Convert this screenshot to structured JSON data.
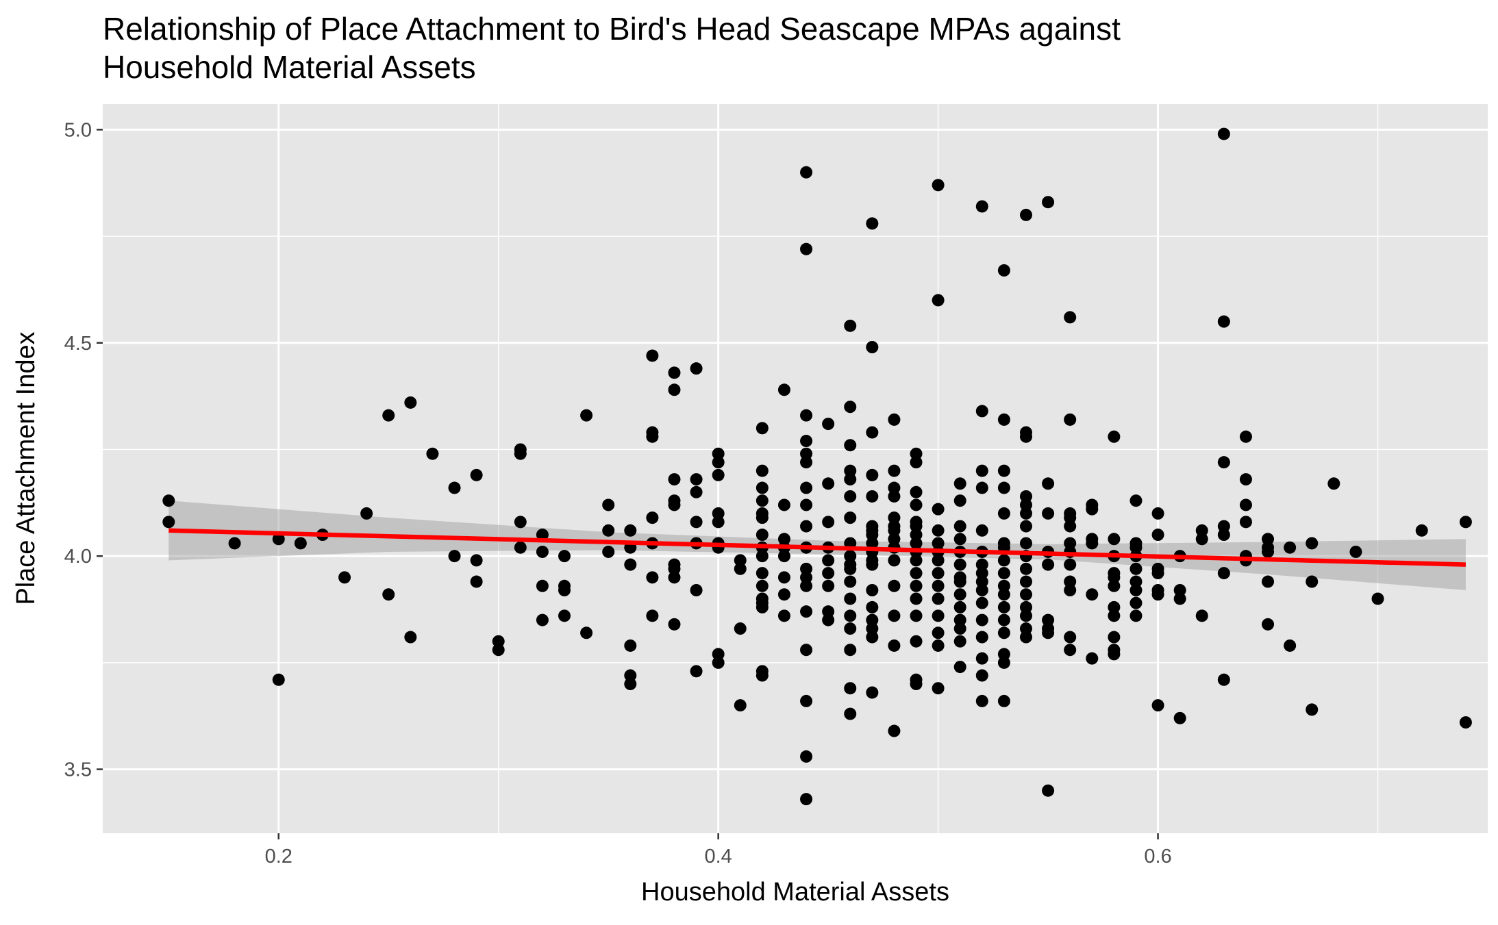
{
  "chart_data": {
    "type": "scatter",
    "title": "Relationship of Place Attachment to Bird's Head Seascape MPAs against\n        Household Material Assets",
    "xlabel": "Household Material Assets",
    "ylabel": "Place Attachment Index",
    "xlim": [
      0.12,
      0.75
    ],
    "ylim": [
      3.35,
      5.06
    ],
    "xticks": [
      {
        "value": 0.2,
        "label": "0.2"
      },
      {
        "value": 0.4,
        "label": "0.4"
      },
      {
        "value": 0.6,
        "label": "0.6"
      }
    ],
    "yticks": [
      {
        "value": 3.5,
        "label": "3.5"
      },
      {
        "value": 4.0,
        "label": "4.0"
      },
      {
        "value": 4.5,
        "label": "4.5"
      },
      {
        "value": 5.0,
        "label": "5.0"
      }
    ],
    "grid": true,
    "legend": "none",
    "colors": {
      "panel": "#e6e6e6",
      "grid": "#ffffff",
      "points": "#000000",
      "fit_line": "#ff0000",
      "ribbon": "#999999"
    },
    "points": [
      [
        0.15,
        4.13
      ],
      [
        0.15,
        4.08
      ],
      [
        0.18,
        4.03
      ],
      [
        0.2,
        4.04
      ],
      [
        0.2,
        3.71
      ],
      [
        0.21,
        4.03
      ],
      [
        0.22,
        4.05
      ],
      [
        0.23,
        3.95
      ],
      [
        0.24,
        4.1
      ],
      [
        0.25,
        4.33
      ],
      [
        0.25,
        3.91
      ],
      [
        0.26,
        4.36
      ],
      [
        0.26,
        3.81
      ],
      [
        0.27,
        4.24
      ],
      [
        0.28,
        4.16
      ],
      [
        0.28,
        4.0
      ],
      [
        0.29,
        4.19
      ],
      [
        0.29,
        3.99
      ],
      [
        0.29,
        3.94
      ],
      [
        0.3,
        3.8
      ],
      [
        0.3,
        3.78
      ],
      [
        0.31,
        4.25
      ],
      [
        0.31,
        4.24
      ],
      [
        0.31,
        4.08
      ],
      [
        0.31,
        4.02
      ],
      [
        0.32,
        4.05
      ],
      [
        0.32,
        4.01
      ],
      [
        0.32,
        3.93
      ],
      [
        0.32,
        3.85
      ],
      [
        0.33,
        4.0
      ],
      [
        0.33,
        3.93
      ],
      [
        0.33,
        3.92
      ],
      [
        0.33,
        3.86
      ],
      [
        0.34,
        4.33
      ],
      [
        0.34,
        3.82
      ],
      [
        0.35,
        4.12
      ],
      [
        0.35,
        4.06
      ],
      [
        0.35,
        4.01
      ],
      [
        0.36,
        4.06
      ],
      [
        0.36,
        4.02
      ],
      [
        0.36,
        3.98
      ],
      [
        0.36,
        3.79
      ],
      [
        0.36,
        3.72
      ],
      [
        0.36,
        3.7
      ],
      [
        0.37,
        4.47
      ],
      [
        0.37,
        4.29
      ],
      [
        0.37,
        4.28
      ],
      [
        0.37,
        4.09
      ],
      [
        0.37,
        4.03
      ],
      [
        0.37,
        3.95
      ],
      [
        0.37,
        3.86
      ],
      [
        0.38,
        4.43
      ],
      [
        0.38,
        4.39
      ],
      [
        0.38,
        4.18
      ],
      [
        0.38,
        4.13
      ],
      [
        0.38,
        4.12
      ],
      [
        0.38,
        3.98
      ],
      [
        0.38,
        3.97
      ],
      [
        0.38,
        3.95
      ],
      [
        0.38,
        3.84
      ],
      [
        0.39,
        4.44
      ],
      [
        0.39,
        4.18
      ],
      [
        0.39,
        4.15
      ],
      [
        0.39,
        4.08
      ],
      [
        0.39,
        4.03
      ],
      [
        0.39,
        3.92
      ],
      [
        0.39,
        3.73
      ],
      [
        0.4,
        4.24
      ],
      [
        0.4,
        4.22
      ],
      [
        0.4,
        4.19
      ],
      [
        0.4,
        4.1
      ],
      [
        0.4,
        4.08
      ],
      [
        0.4,
        4.03
      ],
      [
        0.4,
        4.02
      ],
      [
        0.4,
        3.77
      ],
      [
        0.4,
        3.75
      ],
      [
        0.41,
        3.99
      ],
      [
        0.41,
        3.97
      ],
      [
        0.41,
        3.83
      ],
      [
        0.41,
        3.65
      ],
      [
        0.42,
        4.3
      ],
      [
        0.42,
        4.2
      ],
      [
        0.42,
        4.16
      ],
      [
        0.42,
        4.13
      ],
      [
        0.42,
        4.1
      ],
      [
        0.42,
        4.09
      ],
      [
        0.42,
        4.05
      ],
      [
        0.42,
        4.02
      ],
      [
        0.42,
        4.0
      ],
      [
        0.42,
        3.96
      ],
      [
        0.42,
        3.93
      ],
      [
        0.42,
        3.9
      ],
      [
        0.42,
        3.89
      ],
      [
        0.42,
        3.88
      ],
      [
        0.42,
        3.73
      ],
      [
        0.42,
        3.72
      ],
      [
        0.43,
        4.39
      ],
      [
        0.43,
        4.12
      ],
      [
        0.43,
        4.04
      ],
      [
        0.43,
        4.02
      ],
      [
        0.43,
        4.0
      ],
      [
        0.43,
        3.95
      ],
      [
        0.43,
        3.91
      ],
      [
        0.43,
        3.86
      ],
      [
        0.44,
        4.9
      ],
      [
        0.44,
        4.72
      ],
      [
        0.44,
        4.33
      ],
      [
        0.44,
        4.27
      ],
      [
        0.44,
        4.24
      ],
      [
        0.44,
        4.22
      ],
      [
        0.44,
        4.16
      ],
      [
        0.44,
        4.12
      ],
      [
        0.44,
        4.07
      ],
      [
        0.44,
        4.02
      ],
      [
        0.44,
        3.97
      ],
      [
        0.44,
        3.95
      ],
      [
        0.44,
        3.93
      ],
      [
        0.44,
        3.87
      ],
      [
        0.44,
        3.78
      ],
      [
        0.44,
        3.66
      ],
      [
        0.44,
        3.53
      ],
      [
        0.44,
        3.43
      ],
      [
        0.45,
        4.31
      ],
      [
        0.45,
        4.17
      ],
      [
        0.45,
        4.08
      ],
      [
        0.45,
        4.02
      ],
      [
        0.45,
        3.99
      ],
      [
        0.45,
        3.96
      ],
      [
        0.45,
        3.93
      ],
      [
        0.45,
        3.87
      ],
      [
        0.45,
        3.85
      ],
      [
        0.46,
        4.54
      ],
      [
        0.46,
        4.35
      ],
      [
        0.46,
        4.26
      ],
      [
        0.46,
        4.2
      ],
      [
        0.46,
        4.18
      ],
      [
        0.46,
        4.14
      ],
      [
        0.46,
        4.09
      ],
      [
        0.46,
        4.03
      ],
      [
        0.46,
        4.0
      ],
      [
        0.46,
        3.98
      ],
      [
        0.46,
        3.97
      ],
      [
        0.46,
        3.94
      ],
      [
        0.46,
        3.9
      ],
      [
        0.46,
        3.86
      ],
      [
        0.46,
        3.83
      ],
      [
        0.46,
        3.78
      ],
      [
        0.46,
        3.69
      ],
      [
        0.46,
        3.63
      ],
      [
        0.47,
        4.78
      ],
      [
        0.47,
        4.49
      ],
      [
        0.47,
        4.29
      ],
      [
        0.47,
        4.19
      ],
      [
        0.47,
        4.14
      ],
      [
        0.47,
        4.07
      ],
      [
        0.47,
        4.06
      ],
      [
        0.47,
        4.05
      ],
      [
        0.47,
        4.03
      ],
      [
        0.47,
        4.01
      ],
      [
        0.47,
        3.99
      ],
      [
        0.47,
        3.98
      ],
      [
        0.47,
        3.92
      ],
      [
        0.47,
        3.88
      ],
      [
        0.47,
        3.85
      ],
      [
        0.47,
        3.83
      ],
      [
        0.47,
        3.81
      ],
      [
        0.47,
        3.68
      ],
      [
        0.48,
        4.32
      ],
      [
        0.48,
        4.2
      ],
      [
        0.48,
        4.16
      ],
      [
        0.48,
        4.14
      ],
      [
        0.48,
        4.09
      ],
      [
        0.48,
        4.07
      ],
      [
        0.48,
        4.06
      ],
      [
        0.48,
        4.04
      ],
      [
        0.48,
        4.02
      ],
      [
        0.48,
        3.99
      ],
      [
        0.48,
        3.93
      ],
      [
        0.48,
        3.86
      ],
      [
        0.48,
        3.79
      ],
      [
        0.48,
        3.59
      ],
      [
        0.49,
        4.24
      ],
      [
        0.49,
        4.22
      ],
      [
        0.49,
        4.15
      ],
      [
        0.49,
        4.12
      ],
      [
        0.49,
        4.08
      ],
      [
        0.49,
        4.07
      ],
      [
        0.49,
        4.05
      ],
      [
        0.49,
        4.03
      ],
      [
        0.49,
        4.01
      ],
      [
        0.49,
        3.99
      ],
      [
        0.49,
        3.96
      ],
      [
        0.49,
        3.93
      ],
      [
        0.49,
        3.9
      ],
      [
        0.49,
        3.86
      ],
      [
        0.49,
        3.8
      ],
      [
        0.49,
        3.71
      ],
      [
        0.49,
        3.7
      ],
      [
        0.5,
        4.87
      ],
      [
        0.5,
        4.6
      ],
      [
        0.5,
        4.11
      ],
      [
        0.5,
        4.06
      ],
      [
        0.5,
        4.03
      ],
      [
        0.5,
        4.01
      ],
      [
        0.5,
        3.99
      ],
      [
        0.5,
        3.96
      ],
      [
        0.5,
        3.93
      ],
      [
        0.5,
        3.9
      ],
      [
        0.5,
        3.86
      ],
      [
        0.5,
        3.82
      ],
      [
        0.5,
        3.79
      ],
      [
        0.5,
        3.69
      ],
      [
        0.51,
        4.17
      ],
      [
        0.51,
        4.13
      ],
      [
        0.51,
        4.07
      ],
      [
        0.51,
        4.04
      ],
      [
        0.51,
        4.01
      ],
      [
        0.51,
        3.98
      ],
      [
        0.51,
        3.95
      ],
      [
        0.51,
        3.94
      ],
      [
        0.51,
        3.91
      ],
      [
        0.51,
        3.88
      ],
      [
        0.51,
        3.85
      ],
      [
        0.51,
        3.83
      ],
      [
        0.51,
        3.8
      ],
      [
        0.51,
        3.74
      ],
      [
        0.52,
        4.82
      ],
      [
        0.52,
        4.34
      ],
      [
        0.52,
        4.2
      ],
      [
        0.52,
        4.16
      ],
      [
        0.52,
        4.06
      ],
      [
        0.52,
        4.01
      ],
      [
        0.52,
        3.98
      ],
      [
        0.52,
        3.96
      ],
      [
        0.52,
        3.94
      ],
      [
        0.52,
        3.92
      ],
      [
        0.52,
        3.89
      ],
      [
        0.52,
        3.85
      ],
      [
        0.52,
        3.81
      ],
      [
        0.52,
        3.76
      ],
      [
        0.52,
        3.72
      ],
      [
        0.52,
        3.66
      ],
      [
        0.53,
        4.67
      ],
      [
        0.53,
        4.32
      ],
      [
        0.53,
        4.2
      ],
      [
        0.53,
        4.16
      ],
      [
        0.53,
        4.1
      ],
      [
        0.53,
        4.03
      ],
      [
        0.53,
        4.02
      ],
      [
        0.53,
        3.99
      ],
      [
        0.53,
        3.96
      ],
      [
        0.53,
        3.93
      ],
      [
        0.53,
        3.91
      ],
      [
        0.53,
        3.88
      ],
      [
        0.53,
        3.85
      ],
      [
        0.53,
        3.82
      ],
      [
        0.53,
        3.77
      ],
      [
        0.53,
        3.75
      ],
      [
        0.53,
        3.66
      ],
      [
        0.54,
        4.8
      ],
      [
        0.54,
        4.29
      ],
      [
        0.54,
        4.28
      ],
      [
        0.54,
        4.14
      ],
      [
        0.54,
        4.12
      ],
      [
        0.54,
        4.1
      ],
      [
        0.54,
        4.07
      ],
      [
        0.54,
        4.03
      ],
      [
        0.54,
        4.0
      ],
      [
        0.54,
        3.97
      ],
      [
        0.54,
        3.94
      ],
      [
        0.54,
        3.91
      ],
      [
        0.54,
        3.88
      ],
      [
        0.54,
        3.86
      ],
      [
        0.54,
        3.83
      ],
      [
        0.54,
        3.81
      ],
      [
        0.55,
        4.83
      ],
      [
        0.55,
        4.17
      ],
      [
        0.55,
        4.1
      ],
      [
        0.55,
        4.01
      ],
      [
        0.55,
        3.98
      ],
      [
        0.55,
        3.85
      ],
      [
        0.55,
        3.83
      ],
      [
        0.55,
        3.82
      ],
      [
        0.55,
        3.45
      ],
      [
        0.56,
        4.56
      ],
      [
        0.56,
        4.32
      ],
      [
        0.56,
        4.1
      ],
      [
        0.56,
        4.09
      ],
      [
        0.56,
        4.07
      ],
      [
        0.56,
        4.03
      ],
      [
        0.56,
        4.01
      ],
      [
        0.56,
        3.98
      ],
      [
        0.56,
        3.94
      ],
      [
        0.56,
        3.92
      ],
      [
        0.56,
        3.81
      ],
      [
        0.56,
        3.78
      ],
      [
        0.57,
        4.12
      ],
      [
        0.57,
        4.11
      ],
      [
        0.57,
        4.04
      ],
      [
        0.57,
        4.03
      ],
      [
        0.57,
        3.91
      ],
      [
        0.57,
        3.76
      ],
      [
        0.58,
        4.28
      ],
      [
        0.58,
        4.04
      ],
      [
        0.58,
        4.0
      ],
      [
        0.58,
        3.96
      ],
      [
        0.58,
        3.95
      ],
      [
        0.58,
        3.93
      ],
      [
        0.58,
        3.88
      ],
      [
        0.58,
        3.86
      ],
      [
        0.58,
        3.81
      ],
      [
        0.58,
        3.78
      ],
      [
        0.58,
        3.77
      ],
      [
        0.59,
        4.13
      ],
      [
        0.59,
        4.03
      ],
      [
        0.59,
        4.02
      ],
      [
        0.59,
        4.0
      ],
      [
        0.59,
        3.97
      ],
      [
        0.59,
        3.94
      ],
      [
        0.59,
        3.92
      ],
      [
        0.59,
        3.89
      ],
      [
        0.59,
        3.86
      ],
      [
        0.6,
        4.1
      ],
      [
        0.6,
        4.05
      ],
      [
        0.6,
        3.97
      ],
      [
        0.6,
        3.96
      ],
      [
        0.6,
        3.92
      ],
      [
        0.6,
        3.91
      ],
      [
        0.6,
        3.65
      ],
      [
        0.61,
        4.0
      ],
      [
        0.61,
        3.92
      ],
      [
        0.61,
        3.9
      ],
      [
        0.61,
        3.62
      ],
      [
        0.62,
        4.06
      ],
      [
        0.62,
        4.04
      ],
      [
        0.62,
        3.86
      ],
      [
        0.63,
        4.99
      ],
      [
        0.63,
        4.55
      ],
      [
        0.63,
        4.22
      ],
      [
        0.63,
        4.07
      ],
      [
        0.63,
        4.05
      ],
      [
        0.63,
        3.96
      ],
      [
        0.63,
        3.71
      ],
      [
        0.64,
        4.28
      ],
      [
        0.64,
        4.18
      ],
      [
        0.64,
        4.12
      ],
      [
        0.64,
        4.08
      ],
      [
        0.64,
        4.0
      ],
      [
        0.64,
        3.99
      ],
      [
        0.65,
        4.04
      ],
      [
        0.65,
        4.02
      ],
      [
        0.65,
        4.01
      ],
      [
        0.65,
        3.94
      ],
      [
        0.65,
        3.84
      ],
      [
        0.66,
        4.02
      ],
      [
        0.66,
        3.79
      ],
      [
        0.67,
        4.03
      ],
      [
        0.67,
        3.94
      ],
      [
        0.67,
        3.64
      ],
      [
        0.68,
        4.17
      ],
      [
        0.69,
        4.01
      ],
      [
        0.7,
        3.9
      ],
      [
        0.72,
        4.06
      ],
      [
        0.74,
        4.08
      ],
      [
        0.74,
        3.61
      ]
    ],
    "fit_line": {
      "x": [
        0.15,
        0.74
      ],
      "y": [
        4.06,
        3.98
      ]
    },
    "confidence_band": {
      "x": [
        0.15,
        0.25,
        0.35,
        0.45,
        0.55,
        0.65,
        0.74
      ],
      "upper": [
        4.13,
        4.09,
        4.056,
        4.036,
        4.028,
        4.033,
        4.04
      ],
      "lower": [
        3.99,
        4.01,
        4.014,
        4.004,
        3.992,
        3.957,
        3.92
      ]
    }
  }
}
